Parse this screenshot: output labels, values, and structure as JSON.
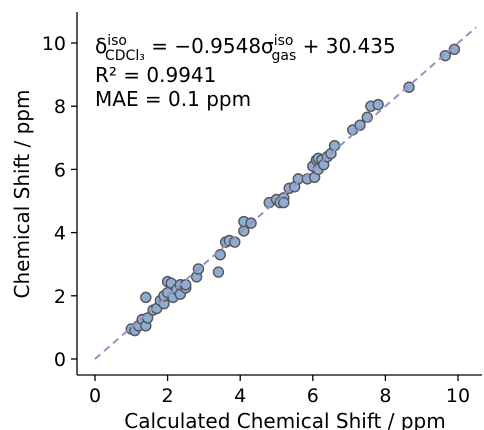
{
  "chart_data": {
    "type": "scatter",
    "xlabel": "Calculated Chemical Shift / ppm",
    "ylabel": "Chemical Shift / ppm",
    "xlim": [
      -0.5,
      10.7
    ],
    "ylim": [
      -0.7,
      11.0
    ],
    "x_ticks": [
      "0",
      "2",
      "4",
      "6",
      "8",
      "10"
    ],
    "y_ticks": [
      "0",
      "2",
      "4",
      "6",
      "8",
      "10"
    ],
    "grid": false,
    "annotation": {
      "equation": {
        "delta": "δ",
        "delta_sup": "iso",
        "delta_sub": "CDCl₃",
        "middle": " = −0.9548σ",
        "sigma_sup": "iso",
        "sigma_sub": "gas",
        "tail": " + 30.435"
      },
      "r2": "R² = 0.9941",
      "mae": "MAE = 0.1 ppm"
    },
    "fit_line": {
      "x": [
        0,
        10.5
      ],
      "y": [
        0,
        10.5
      ],
      "style": "dashed"
    },
    "colors": {
      "marker_fill": "#8eadd4",
      "marker_edge": "#555555",
      "line": "#9a90c0"
    },
    "points": [
      [
        1.0,
        0.95
      ],
      [
        1.1,
        0.9
      ],
      [
        1.2,
        1.05
      ],
      [
        1.3,
        1.25
      ],
      [
        1.4,
        1.05
      ],
      [
        1.45,
        1.3
      ],
      [
        1.4,
        1.95
      ],
      [
        1.6,
        1.55
      ],
      [
        1.7,
        1.6
      ],
      [
        1.8,
        1.85
      ],
      [
        1.9,
        1.75
      ],
      [
        1.9,
        2.0
      ],
      [
        2.0,
        2.45
      ],
      [
        2.0,
        2.1
      ],
      [
        2.1,
        2.4
      ],
      [
        2.15,
        1.95
      ],
      [
        2.25,
        2.2
      ],
      [
        2.35,
        2.05
      ],
      [
        2.35,
        2.35
      ],
      [
        2.5,
        2.25
      ],
      [
        2.5,
        2.35
      ],
      [
        2.8,
        2.6
      ],
      [
        2.85,
        2.85
      ],
      [
        3.4,
        2.75
      ],
      [
        3.45,
        3.3
      ],
      [
        3.6,
        3.7
      ],
      [
        3.7,
        3.75
      ],
      [
        3.85,
        3.7
      ],
      [
        4.1,
        4.05
      ],
      [
        4.1,
        4.35
      ],
      [
        4.3,
        4.3
      ],
      [
        4.8,
        4.95
      ],
      [
        5.0,
        5.05
      ],
      [
        5.1,
        4.95
      ],
      [
        5.2,
        5.1
      ],
      [
        5.2,
        4.95
      ],
      [
        5.35,
        5.4
      ],
      [
        5.5,
        5.45
      ],
      [
        5.6,
        5.7
      ],
      [
        5.85,
        5.7
      ],
      [
        6.0,
        6.1
      ],
      [
        6.05,
        5.75
      ],
      [
        6.1,
        6.3
      ],
      [
        6.15,
        6.0
      ],
      [
        6.15,
        6.35
      ],
      [
        6.25,
        6.3
      ],
      [
        6.3,
        6.15
      ],
      [
        6.4,
        6.4
      ],
      [
        6.5,
        6.5
      ],
      [
        6.6,
        6.75
      ],
      [
        7.1,
        7.25
      ],
      [
        7.3,
        7.4
      ],
      [
        7.5,
        7.65
      ],
      [
        7.6,
        8.0
      ],
      [
        7.8,
        8.05
      ],
      [
        8.65,
        8.6
      ],
      [
        9.65,
        9.6
      ],
      [
        9.9,
        9.8
      ]
    ]
  }
}
